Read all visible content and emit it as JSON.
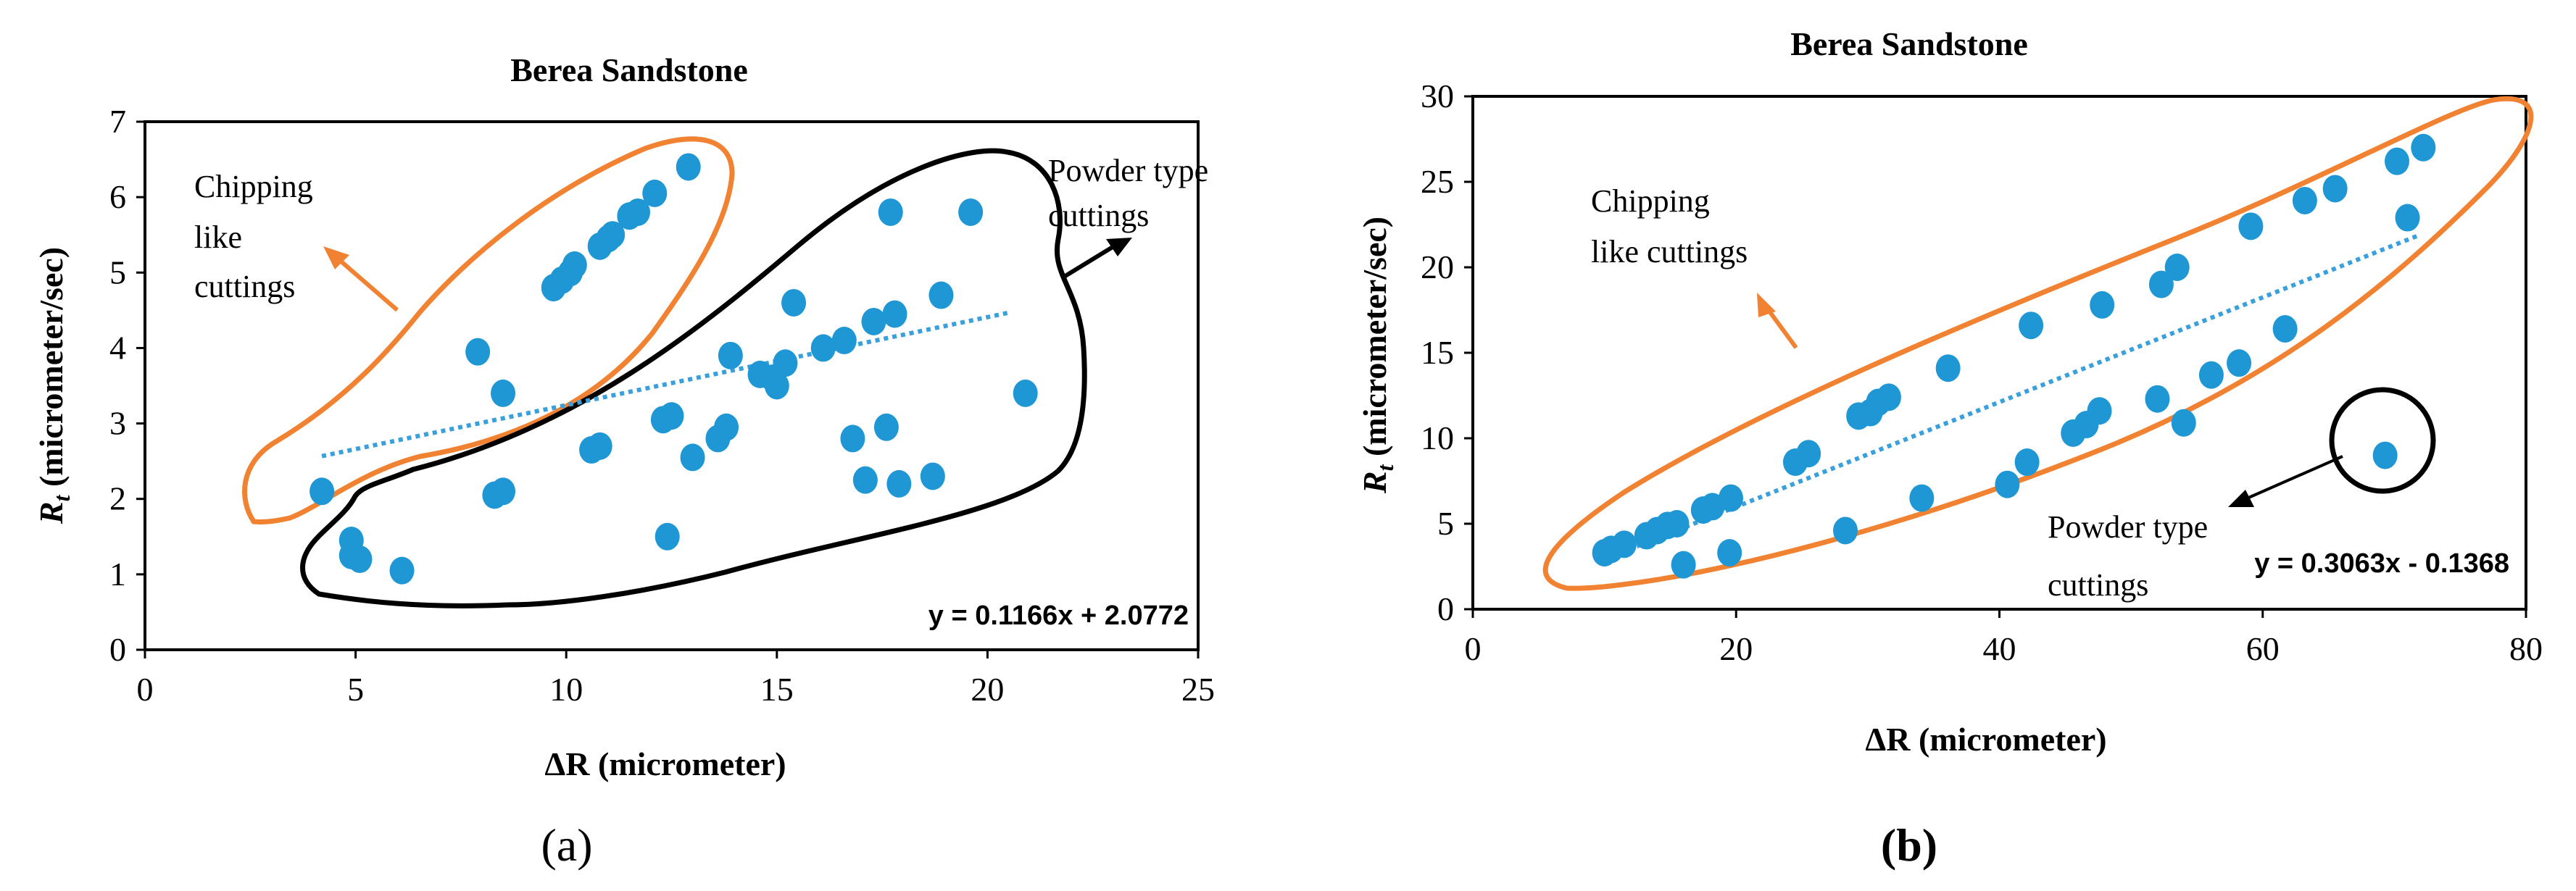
{
  "chart_data": [
    {
      "type": "scatter",
      "panel_label": "a",
      "title": "Berea Sandstone",
      "xlabel": "ΔR (micrometer)",
      "ylabel_main": "R",
      "ylabel_sub": "t",
      "ylabel_rest": " (micrometer/sec)",
      "xlim": [
        0,
        25
      ],
      "ylim": [
        0,
        7
      ],
      "xticks": [
        0,
        5,
        10,
        15,
        20,
        25
      ],
      "yticks": [
        0,
        1,
        2,
        3,
        4,
        5,
        6,
        7
      ],
      "trendline": {
        "equation": "y = 0.1166x + 2.0772",
        "slope": 0.1166,
        "intercept": 2.0772,
        "x_range": [
          4.2,
          20.5
        ]
      },
      "annotations": {
        "chipping_line1": "Chipping",
        "chipping_line2": "like",
        "chipping_line3": "cuttings",
        "powder_line1": "Powder type",
        "powder_line2": "cuttings"
      },
      "points": [
        [
          4.2,
          2.1
        ],
        [
          4.9,
          1.45
        ],
        [
          4.9,
          1.25
        ],
        [
          5.1,
          1.2
        ],
        [
          6.1,
          1.05
        ],
        [
          7.9,
          3.95
        ],
        [
          8.3,
          2.05
        ],
        [
          8.5,
          2.1
        ],
        [
          8.5,
          3.4
        ],
        [
          9.7,
          4.8
        ],
        [
          9.9,
          4.9
        ],
        [
          10.1,
          5.0
        ],
        [
          10.2,
          5.1
        ],
        [
          10.6,
          2.65
        ],
        [
          10.8,
          2.7
        ],
        [
          10.8,
          5.35
        ],
        [
          11.0,
          5.45
        ],
        [
          11.1,
          5.5
        ],
        [
          11.5,
          5.75
        ],
        [
          11.7,
          5.8
        ],
        [
          12.1,
          6.05
        ],
        [
          12.3,
          3.05
        ],
        [
          12.4,
          1.5
        ],
        [
          12.5,
          3.1
        ],
        [
          12.9,
          6.4
        ],
        [
          13.0,
          2.55
        ],
        [
          13.6,
          2.8
        ],
        [
          13.8,
          2.95
        ],
        [
          13.9,
          3.9
        ],
        [
          14.6,
          3.65
        ],
        [
          14.9,
          3.6
        ],
        [
          15.0,
          3.5
        ],
        [
          15.2,
          3.8
        ],
        [
          15.4,
          4.6
        ],
        [
          16.1,
          4.0
        ],
        [
          16.6,
          4.1
        ],
        [
          16.8,
          2.8
        ],
        [
          17.1,
          2.25
        ],
        [
          17.3,
          4.35
        ],
        [
          17.6,
          2.95
        ],
        [
          17.7,
          5.8
        ],
        [
          17.8,
          4.45
        ],
        [
          17.9,
          2.2
        ],
        [
          18.7,
          2.3
        ],
        [
          18.9,
          4.7
        ],
        [
          19.6,
          5.8
        ],
        [
          20.9,
          3.4
        ]
      ]
    },
    {
      "type": "scatter",
      "panel_label": "b",
      "title": "Berea Sandstone",
      "xlabel": "ΔR (micrometer)",
      "ylabel_main": "R",
      "ylabel_sub": "t",
      "ylabel_rest": " (micrometer/sec)",
      "xlim": [
        0,
        80
      ],
      "ylim": [
        0,
        30
      ],
      "xticks": [
        0,
        20,
        40,
        60,
        80
      ],
      "yticks": [
        0,
        5,
        10,
        15,
        20,
        25,
        30
      ],
      "trendline": {
        "equation": "y = 0.3063x - 0.1368",
        "slope": 0.3063,
        "intercept": -0.1368,
        "x_range": [
          10,
          72
        ]
      },
      "annotations": {
        "chipping_line1": "Chipping",
        "chipping_line2": "like cuttings",
        "powder_line1": "Powder type",
        "powder_line2": "cuttings"
      },
      "points": [
        [
          10.0,
          3.3
        ],
        [
          10.5,
          3.5
        ],
        [
          11.5,
          3.8
        ],
        [
          13.2,
          4.3
        ],
        [
          14.0,
          4.6
        ],
        [
          14.8,
          4.9
        ],
        [
          15.5,
          5.0
        ],
        [
          16.0,
          2.6
        ],
        [
          17.5,
          5.8
        ],
        [
          18.2,
          6.0
        ],
        [
          19.5,
          3.3
        ],
        [
          19.6,
          6.5
        ],
        [
          24.5,
          8.6
        ],
        [
          25.5,
          9.1
        ],
        [
          28.3,
          4.6
        ],
        [
          29.3,
          11.3
        ],
        [
          30.2,
          11.5
        ],
        [
          30.8,
          12.1
        ],
        [
          31.6,
          12.4
        ],
        [
          34.1,
          6.5
        ],
        [
          36.1,
          14.1
        ],
        [
          40.6,
          7.3
        ],
        [
          42.1,
          8.6
        ],
        [
          42.4,
          16.6
        ],
        [
          45.6,
          10.3
        ],
        [
          46.6,
          10.8
        ],
        [
          47.6,
          11.6
        ],
        [
          47.8,
          17.8
        ],
        [
          52.0,
          12.3
        ],
        [
          52.3,
          19.0
        ],
        [
          53.5,
          20.0
        ],
        [
          54.0,
          10.9
        ],
        [
          56.1,
          13.7
        ],
        [
          58.2,
          14.4
        ],
        [
          59.1,
          22.4
        ],
        [
          61.7,
          16.4
        ],
        [
          63.2,
          23.9
        ],
        [
          65.5,
          24.6
        ],
        [
          69.3,
          9.0
        ],
        [
          70.2,
          26.2
        ],
        [
          71.0,
          22.9
        ],
        [
          72.2,
          27.0
        ]
      ]
    }
  ]
}
